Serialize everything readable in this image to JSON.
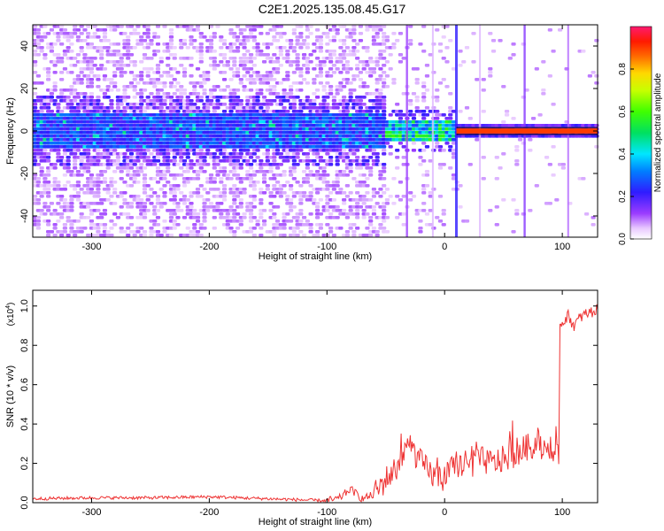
{
  "title": "C2E1.2025.135.08.45.G17",
  "chart_data": [
    {
      "type": "heatmap",
      "xlabel": "Height of straight line (km)",
      "ylabel": "Frequency (Hz)",
      "xlim": [
        -350,
        130
      ],
      "ylim": [
        -50,
        50
      ],
      "xticks": [
        -300,
        -200,
        -100,
        0,
        100
      ],
      "yticks": [
        -40,
        -20,
        0,
        20,
        40
      ],
      "colorbar": {
        "label": "Normalized spectral amplitude",
        "range": [
          0,
          1
        ],
        "ticks": [
          0.0,
          0.2,
          0.4,
          0.6,
          0.8
        ],
        "tick_labels": [
          "0.0",
          "0.2",
          "0.4",
          "0.6",
          "0.8"
        ]
      },
      "features": {
        "noise_band_center_hz": 0,
        "noise_band_halfwidth_hz": 8,
        "carrier_line_start_km": 10,
        "carrier_line_end_km": 130,
        "carrier_amplitude": 0.9
      }
    },
    {
      "type": "line",
      "xlabel": "Height of straight line (km)",
      "ylabel": "SNR (10 * v/v)",
      "yscale_label": "(x10",
      "yscale_exp": "4",
      "yscale_close": ")",
      "xlim": [
        -350,
        130
      ],
      "ylim": [
        0,
        1.08
      ],
      "xticks": [
        -300,
        -200,
        -100,
        0,
        100
      ],
      "yticks": [
        0.0,
        0.2,
        0.4,
        0.6,
        0.8,
        1.0
      ],
      "ytick_labels": [
        "0.0",
        "0.2",
        "0.4",
        "0.6",
        "0.8",
        "1.0"
      ],
      "series": [
        {
          "color": "#ee3333",
          "x": [
            -350,
            -300,
            -250,
            -200,
            -150,
            -100,
            -90,
            -80,
            -70,
            -60,
            -50,
            -40,
            -30,
            -20,
            -10,
            0,
            10,
            20,
            30,
            40,
            50,
            60,
            70,
            80,
            90,
            97,
            98,
            100,
            105,
            110,
            115,
            120,
            130
          ],
          "y": [
            0.02,
            0.025,
            0.025,
            0.03,
            0.02,
            0.01,
            0.02,
            0.07,
            0.02,
            0.04,
            0.12,
            0.18,
            0.3,
            0.2,
            0.14,
            0.12,
            0.2,
            0.18,
            0.22,
            0.2,
            0.22,
            0.25,
            0.28,
            0.3,
            0.26,
            0.22,
            0.9,
            0.92,
            0.95,
            0.9,
            0.94,
            0.96,
            0.98
          ]
        }
      ]
    }
  ]
}
